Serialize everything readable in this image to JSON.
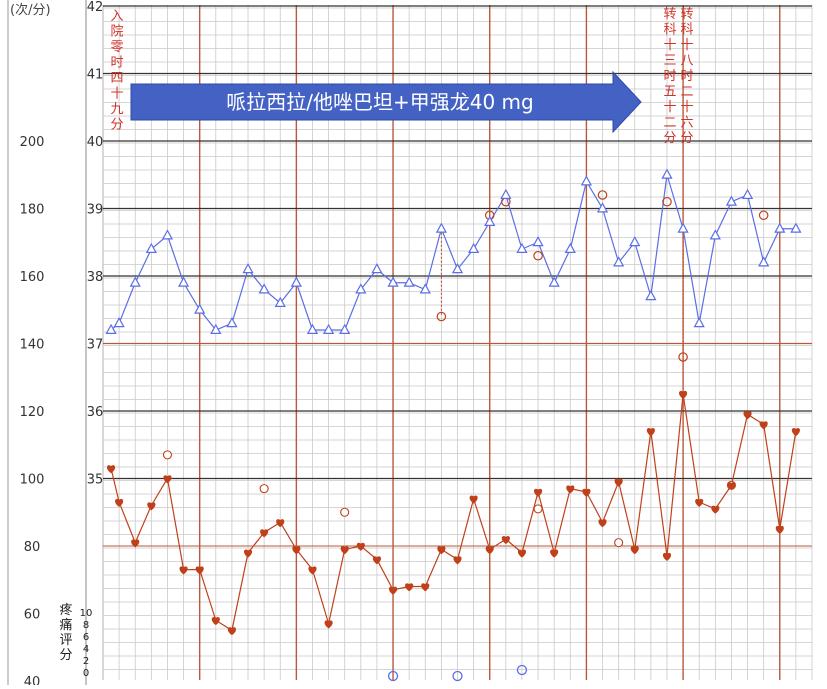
{
  "chart_data": {
    "type": "line",
    "pulse_axis": {
      "unit_label": "(次/分)",
      "ticks": [
        200,
        180,
        160,
        140,
        120,
        100,
        80,
        60,
        40
      ],
      "range": [
        40,
        200
      ]
    },
    "temp_axis": {
      "ticks": [
        42,
        41,
        40,
        39,
        38,
        37,
        36,
        35
      ],
      "range": [
        34,
        42
      ]
    },
    "pain_label": "疼痛评分",
    "pain_ticks": [
      "10",
      "8",
      "6",
      "4",
      "2",
      "0"
    ],
    "annotations": {
      "admission": "入院零时四十九分",
      "transfer1": "转科十三时五十二分",
      "transfer2": "转科十八时二十六分"
    },
    "treatment_label": "哌拉西拉/他唑巴坦+甲强龙40 mg",
    "colors": {
      "temperature": "#5b6ee6",
      "pulse": "#c0401a",
      "treatment_arrow": "#4462c4",
      "grid_major": "#b85a3a"
    },
    "temperature": {
      "x": [
        0.5,
        1,
        2,
        3,
        4,
        5,
        6,
        7,
        8,
        9,
        10,
        11,
        12,
        13,
        14,
        15,
        16,
        17,
        18,
        19,
        20,
        21,
        22,
        23,
        24,
        25,
        26,
        27,
        28,
        29,
        30,
        31,
        32,
        33,
        34,
        35,
        36,
        37,
        38,
        39,
        40,
        41,
        42,
        43
      ],
      "values": [
        37.2,
        37.3,
        37.9,
        38.4,
        38.6,
        37.9,
        37.5,
        37.2,
        37.3,
        38.1,
        37.8,
        37.6,
        37.9,
        37.2,
        37.2,
        37.2,
        37.8,
        38.1,
        37.9,
        37.9,
        37.8,
        38.7,
        38.1,
        38.4,
        38.8,
        39.2,
        38.4,
        38.5,
        37.9,
        38.4,
        39.4,
        39.0,
        38.2,
        38.5,
        37.7,
        39.5,
        38.7,
        37.3,
        38.6,
        39.1,
        39.2,
        38.2,
        38.7,
        38.7
      ],
      "drop_to": [
        {
          "x": 21,
          "y": 37.4
        },
        {
          "x": 36,
          "y": 36.8
        }
      ],
      "retest_circles": [
        {
          "x": 24,
          "y": 38.9
        },
        {
          "x": 25,
          "y": 39.1
        },
        {
          "x": 27,
          "y": 38.3
        },
        {
          "x": 31,
          "y": 39.2
        },
        {
          "x": 35,
          "y": 39.1
        },
        {
          "x": 41,
          "y": 38.9
        }
      ]
    },
    "pulse": {
      "x": [
        0.5,
        1,
        2,
        3,
        4,
        5,
        6,
        7,
        8,
        9,
        10,
        11,
        12,
        13,
        14,
        15,
        16,
        17,
        18,
        19,
        20,
        21,
        22,
        23,
        24,
        25,
        26,
        27,
        28,
        29,
        30,
        31,
        32,
        33,
        34,
        35,
        36,
        37,
        38,
        39,
        40,
        41,
        42,
        43
      ],
      "values": [
        103,
        93,
        81,
        92,
        100,
        73,
        73,
        58,
        55,
        78,
        84,
        87,
        79,
        73,
        57,
        79,
        80,
        76,
        67,
        68,
        68,
        79,
        76,
        94,
        79,
        82,
        78,
        96,
        78,
        97,
        96,
        87,
        99,
        79,
        114,
        77,
        125,
        93,
        91,
        98,
        119,
        116,
        85,
        114
      ],
      "hollow_circles": [
        {
          "x": 4,
          "y": 107
        },
        {
          "x": 10,
          "y": 97
        },
        {
          "x": 15,
          "y": 90
        },
        {
          "x": 27,
          "y": 91
        },
        {
          "x": 32,
          "y": 81
        },
        {
          "x": 39,
          "y": 98
        }
      ]
    },
    "pain_marks": {
      "x": [
        18,
        22,
        26
      ],
      "values": [
        0,
        0,
        1
      ]
    }
  }
}
